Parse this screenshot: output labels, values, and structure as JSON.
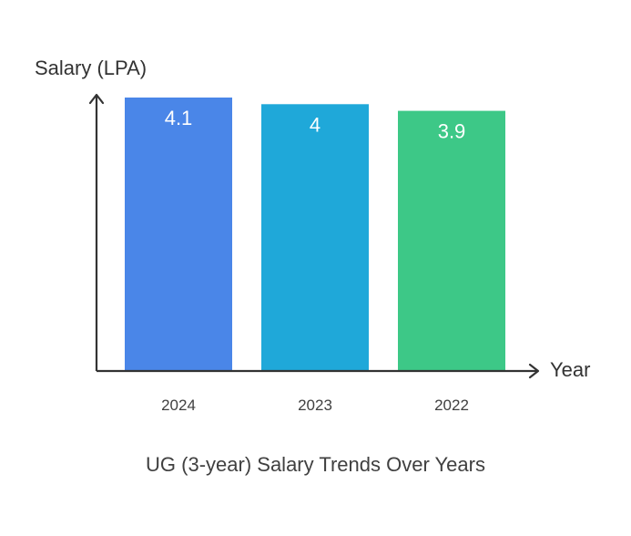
{
  "chart_data": {
    "type": "bar",
    "title": "UG (3-year) Salary Trends Over Years",
    "xlabel": "Year",
    "ylabel": "Salary (LPA)",
    "categories": [
      "2024",
      "2023",
      "2022"
    ],
    "values": [
      4.1,
      4,
      3.9
    ],
    "value_labels": [
      "4.1",
      "4",
      "3.9"
    ],
    "ylim": [
      0,
      4.1
    ],
    "grid": false,
    "colors": [
      "#4A86E8",
      "#1FA8D9",
      "#3DC887"
    ],
    "axis_color": "#333333",
    "tick_label_color": "#404040",
    "value_label_color": "#ffffff"
  }
}
